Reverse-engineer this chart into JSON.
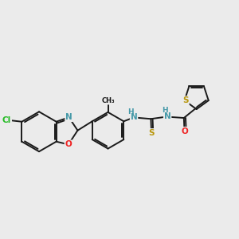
{
  "background_color": "#ebebeb",
  "bond_color": "#1a1a1a",
  "atom_colors": {
    "N": "#4599a8",
    "O": "#ee2222",
    "S": "#b8960a",
    "Cl": "#22bb22",
    "C": "#1a1a1a",
    "H": "#4599a8"
  },
  "figsize": [
    3.0,
    3.0
  ],
  "dpi": 100
}
